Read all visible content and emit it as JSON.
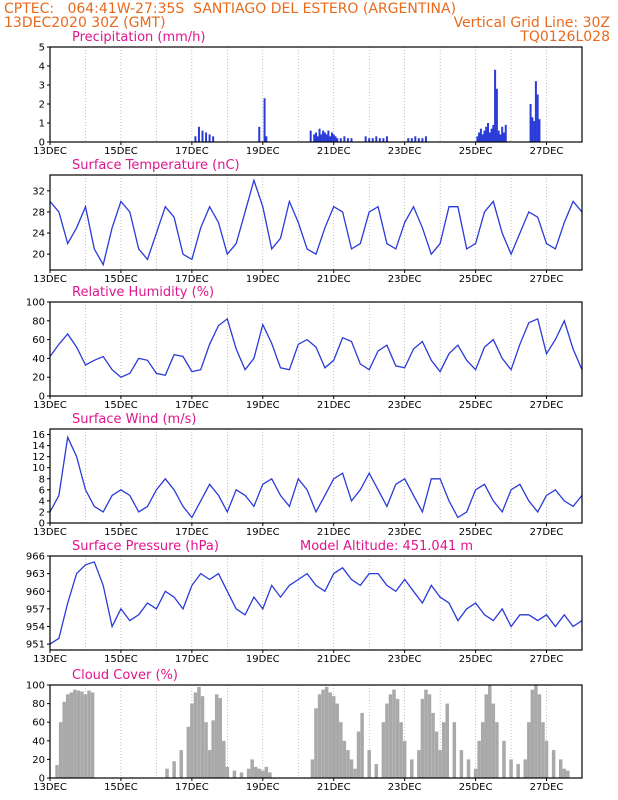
{
  "header": {
    "left1": "CPTEC:   064:41W-27:35S  SANTIAGO DEL ESTERO (ARGENTINA)",
    "left2": "13DEC2020 30Z (GMT)",
    "right2": "Vertical Grid Line: 30Z",
    "right3": "TQ0126L028"
  },
  "x_labels": [
    "13DEC",
    "15DEC",
    "17DEC",
    "19DEC",
    "21DEC",
    "23DEC",
    "25DEC",
    "27DEC"
  ],
  "colors": {
    "line": "#2a3bd8",
    "bar": "#2a3bd8",
    "cloud": "#a9a9a9",
    "title": "#e0168c",
    "header": "#e86a1c",
    "grid": "#999999"
  },
  "chart_data": [
    {
      "type": "bar",
      "title": "Precipitation (mm/h)",
      "ylim": [
        0,
        5
      ],
      "yticks": [
        "0",
        "1",
        "2",
        "3",
        "4",
        "5"
      ],
      "x_range_days": [
        0,
        15
      ],
      "x": [
        4.1,
        4.2,
        4.3,
        4.4,
        4.5,
        4.6,
        5.9,
        6.05,
        6.1,
        7.35,
        7.45,
        7.5,
        7.55,
        7.6,
        7.65,
        7.7,
        7.75,
        7.8,
        7.85,
        7.9,
        7.95,
        8.0,
        8.05,
        8.1,
        8.2,
        8.3,
        8.4,
        8.5,
        8.9,
        9.0,
        9.1,
        9.2,
        9.3,
        9.4,
        9.5,
        10.1,
        10.2,
        10.3,
        10.4,
        10.5,
        10.6,
        12.05,
        12.1,
        12.15,
        12.2,
        12.25,
        12.3,
        12.35,
        12.4,
        12.45,
        12.5,
        12.55,
        12.6,
        12.65,
        12.7,
        12.75,
        12.8,
        12.85,
        13.55,
        13.6,
        13.65,
        13.7,
        13.75,
        13.8
      ],
      "values": [
        0.3,
        0.8,
        0.6,
        0.5,
        0.4,
        0.3,
        0.8,
        2.3,
        0.3,
        0.6,
        0.4,
        0.5,
        0.3,
        0.7,
        0.4,
        0.6,
        0.5,
        0.4,
        0.6,
        0.3,
        0.5,
        0.4,
        0.3,
        0.2,
        0.2,
        0.3,
        0.2,
        0.2,
        0.3,
        0.2,
        0.2,
        0.3,
        0.2,
        0.2,
        0.3,
        0.2,
        0.2,
        0.3,
        0.2,
        0.2,
        0.3,
        0.3,
        0.5,
        0.7,
        0.4,
        0.6,
        0.8,
        1.0,
        0.5,
        0.7,
        0.9,
        3.8,
        2.8,
        0.6,
        0.4,
        0.8,
        0.5,
        0.9,
        2.0,
        1.3,
        1.1,
        3.2,
        2.5,
        1.2
      ]
    },
    {
      "type": "line",
      "title": "Surface Temperature (nC)",
      "ylim": [
        17,
        35
      ],
      "yticks": [
        "20",
        "24",
        "28",
        "32"
      ],
      "x_range_days": [
        0,
        15
      ],
      "x": [
        0,
        0.25,
        0.5,
        0.75,
        1,
        1.25,
        1.5,
        1.75,
        2,
        2.25,
        2.5,
        2.75,
        3,
        3.25,
        3.5,
        3.75,
        4,
        4.25,
        4.5,
        4.75,
        5,
        5.25,
        5.5,
        5.75,
        6,
        6.25,
        6.5,
        6.75,
        7,
        7.25,
        7.5,
        7.75,
        8,
        8.25,
        8.5,
        8.75,
        9,
        9.25,
        9.5,
        9.75,
        10,
        10.25,
        10.5,
        10.75,
        11,
        11.25,
        11.5,
        11.75,
        12,
        12.25,
        12.5,
        12.75,
        13,
        13.25,
        13.5,
        13.75,
        14,
        14.25,
        14.5,
        14.75,
        15
      ],
      "y": [
        30,
        28,
        22,
        25,
        29,
        21,
        18,
        25,
        30,
        28,
        21,
        19,
        24,
        29,
        27,
        20,
        19,
        25,
        29,
        26,
        20,
        22,
        28,
        34,
        29,
        21,
        23,
        30,
        26,
        21,
        20,
        25,
        29,
        28,
        21,
        22,
        28,
        29,
        22,
        21,
        26,
        29,
        25,
        20,
        22,
        29,
        29,
        21,
        22,
        28,
        30,
        24,
        20,
        24,
        28,
        27,
        22,
        21,
        26,
        30,
        28
      ]
    },
    {
      "type": "line",
      "title": "Relative Humidity (%)",
      "ylim": [
        0,
        100
      ],
      "yticks": [
        "0",
        "20",
        "40",
        "60",
        "80",
        "100"
      ],
      "x_range_days": [
        0,
        15
      ],
      "x": [
        0,
        0.25,
        0.5,
        0.75,
        1,
        1.25,
        1.5,
        1.75,
        2,
        2.25,
        2.5,
        2.75,
        3,
        3.25,
        3.5,
        3.75,
        4,
        4.25,
        4.5,
        4.75,
        5,
        5.25,
        5.5,
        5.75,
        6,
        6.25,
        6.5,
        6.75,
        7,
        7.25,
        7.5,
        7.75,
        8,
        8.25,
        8.5,
        8.75,
        9,
        9.25,
        9.5,
        9.75,
        10,
        10.25,
        10.5,
        10.75,
        11,
        11.25,
        11.5,
        11.75,
        12,
        12.25,
        12.5,
        12.75,
        13,
        13.25,
        13.5,
        13.75,
        14,
        14.25,
        14.5,
        14.75,
        15
      ],
      "y": [
        42,
        55,
        66,
        52,
        33,
        38,
        42,
        28,
        20,
        24,
        40,
        38,
        24,
        22,
        44,
        42,
        26,
        28,
        55,
        75,
        82,
        50,
        28,
        40,
        76,
        56,
        30,
        28,
        55,
        60,
        52,
        30,
        38,
        62,
        58,
        34,
        28,
        48,
        54,
        32,
        30,
        50,
        58,
        38,
        26,
        45,
        54,
        38,
        28,
        52,
        60,
        40,
        28,
        55,
        78,
        82,
        45,
        60,
        80,
        50,
        28
      ]
    },
    {
      "type": "line",
      "title": "Surface Wind (m/s)",
      "ylim": [
        0,
        17
      ],
      "yticks": [
        "0",
        "2",
        "4",
        "6",
        "8",
        "10",
        "12",
        "14",
        "16"
      ],
      "x_range_days": [
        0,
        15
      ],
      "x": [
        0,
        0.25,
        0.5,
        0.75,
        1,
        1.25,
        1.5,
        1.75,
        2,
        2.25,
        2.5,
        2.75,
        3,
        3.25,
        3.5,
        3.75,
        4,
        4.25,
        4.5,
        4.75,
        5,
        5.25,
        5.5,
        5.75,
        6,
        6.25,
        6.5,
        6.75,
        7,
        7.25,
        7.5,
        7.75,
        8,
        8.25,
        8.5,
        8.75,
        9,
        9.25,
        9.5,
        9.75,
        10,
        10.25,
        10.5,
        10.75,
        11,
        11.25,
        11.5,
        11.75,
        12,
        12.25,
        12.5,
        12.75,
        13,
        13.25,
        13.5,
        13.75,
        14,
        14.25,
        14.5,
        14.75,
        15
      ],
      "y": [
        2,
        5,
        15.5,
        12,
        6,
        3,
        2,
        5,
        6,
        5,
        2,
        3,
        6,
        8,
        6,
        3,
        1,
        4,
        7,
        5,
        2,
        6,
        5,
        3,
        7,
        8,
        5,
        3,
        8,
        6,
        2,
        5,
        8,
        9,
        4,
        6,
        9,
        6,
        3,
        7,
        8,
        5,
        2,
        8,
        8,
        4,
        1,
        2,
        6,
        7,
        4,
        2,
        6,
        7,
        4,
        2,
        5,
        6,
        4,
        3,
        5
      ]
    },
    {
      "type": "line",
      "title": "Surface Pressure (hPa)",
      "annotation": "Model Altitude: 451.041 m",
      "ylim": [
        950,
        966
      ],
      "yticks": [
        "951",
        "954",
        "957",
        "960",
        "963",
        "966"
      ],
      "x_range_days": [
        0,
        15
      ],
      "x": [
        0,
        0.25,
        0.5,
        0.75,
        1,
        1.25,
        1.5,
        1.75,
        2,
        2.25,
        2.5,
        2.75,
        3,
        3.25,
        3.5,
        3.75,
        4,
        4.25,
        4.5,
        4.75,
        5,
        5.25,
        5.5,
        5.75,
        6,
        6.25,
        6.5,
        6.75,
        7,
        7.25,
        7.5,
        7.75,
        8,
        8.25,
        8.5,
        8.75,
        9,
        9.25,
        9.5,
        9.75,
        10,
        10.25,
        10.5,
        10.75,
        11,
        11.25,
        11.5,
        11.75,
        12,
        12.25,
        12.5,
        12.75,
        13,
        13.25,
        13.5,
        13.75,
        14,
        14.25,
        14.5,
        14.75,
        15
      ],
      "y": [
        951,
        952,
        958,
        963,
        964.5,
        965,
        961,
        954,
        957,
        955,
        956,
        958,
        957,
        960,
        959,
        957,
        961,
        963,
        962,
        963,
        960,
        957,
        956,
        959,
        957,
        961,
        959,
        961,
        962,
        963,
        961,
        960,
        963,
        964,
        962,
        961,
        963,
        963,
        961,
        960,
        962,
        960,
        958,
        961,
        959,
        958,
        955,
        957,
        958,
        956,
        955,
        957,
        954,
        956,
        956,
        955,
        956,
        954,
        956,
        954,
        955
      ]
    },
    {
      "type": "bar",
      "title": "Cloud Cover (%)",
      "ylim": [
        0,
        100
      ],
      "yticks": [
        "0",
        "20",
        "40",
        "60",
        "80",
        "100"
      ],
      "x_range_days": [
        0,
        15
      ],
      "x": [
        0.2,
        0.3,
        0.4,
        0.5,
        0.6,
        0.7,
        0.8,
        0.9,
        1.0,
        1.1,
        1.2,
        3.3,
        3.5,
        3.7,
        3.9,
        4.0,
        4.1,
        4.2,
        4.3,
        4.4,
        4.5,
        4.6,
        4.7,
        4.8,
        4.9,
        5.0,
        5.2,
        5.4,
        5.6,
        5.7,
        5.8,
        5.9,
        6.0,
        6.1,
        6.2,
        7.4,
        7.5,
        7.6,
        7.7,
        7.8,
        7.9,
        8.0,
        8.1,
        8.2,
        8.3,
        8.4,
        8.5,
        8.6,
        8.7,
        8.8,
        9.0,
        9.2,
        9.4,
        9.5,
        9.6,
        9.7,
        9.8,
        9.9,
        10.0,
        10.2,
        10.4,
        10.5,
        10.6,
        10.7,
        10.8,
        10.9,
        11.0,
        11.1,
        11.2,
        11.4,
        11.6,
        11.8,
        12.0,
        12.1,
        12.2,
        12.3,
        12.4,
        12.5,
        12.6,
        12.8,
        13.0,
        13.2,
        13.4,
        13.5,
        13.6,
        13.7,
        13.8,
        13.9,
        14.0,
        14.2,
        14.4,
        14.5,
        14.6
      ],
      "values": [
        14,
        60,
        82,
        90,
        92,
        95,
        94,
        93,
        90,
        94,
        92,
        10,
        18,
        30,
        55,
        80,
        92,
        98,
        88,
        60,
        30,
        62,
        90,
        86,
        40,
        12,
        8,
        6,
        10,
        20,
        12,
        10,
        8,
        12,
        6,
        20,
        75,
        90,
        95,
        98,
        92,
        88,
        80,
        60,
        40,
        30,
        20,
        10,
        50,
        70,
        30,
        15,
        60,
        80,
        90,
        95,
        85,
        60,
        40,
        20,
        30,
        85,
        95,
        90,
        70,
        50,
        30,
        60,
        80,
        60,
        30,
        20,
        10,
        40,
        60,
        90,
        100,
        80,
        60,
        40,
        20,
        15,
        20,
        60,
        95,
        100,
        90,
        60,
        40,
        30,
        20,
        10,
        8
      ]
    }
  ]
}
